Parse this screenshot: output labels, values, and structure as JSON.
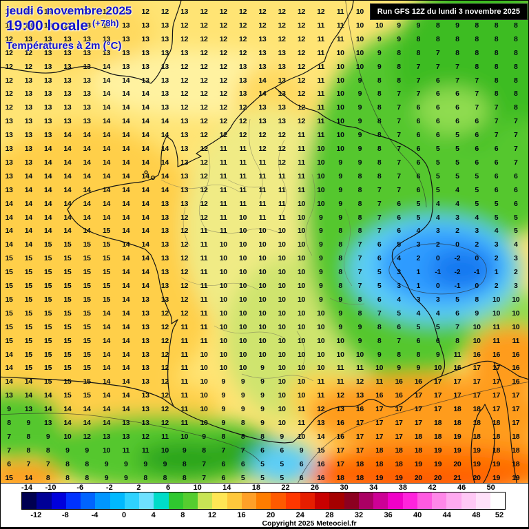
{
  "header": {
    "date_line": "jeudi 6 novembre 2025",
    "time_line": "19:00 locale",
    "time_offset": "(+78h)",
    "variable_line": "Températures à 2m (°C)"
  },
  "run_info": {
    "text": "Run GFS 12Z du lundi 3 novembre 2025"
  },
  "footer": {
    "copyright": "Copyright 2025 Meteociel.fr"
  },
  "palette": {
    "base_yellow": "#ffe474",
    "pale_yellow": "#fff2a0",
    "gold": "#ffcf4a",
    "gold2": "#ffd95e",
    "cream": "#f0eb85",
    "pale_green": "#cfe46e",
    "green": "#54c72e",
    "bright_green": "#3dbc22",
    "light_green": "#8fdc50",
    "dark_green": "#2aa51c",
    "cyan": "#5bcdf8",
    "blue": "#2f9bff",
    "deep_blue": "#1478f0",
    "orange": "#ff9c1e",
    "deep_orange": "#ff7000",
    "red_orange": "#ff4d00",
    "header_blue": "#1212cc",
    "value_text": "#000a14"
  },
  "scale": {
    "labels_top": [
      "-14",
      "-10",
      "-6",
      "-2",
      "2",
      "6",
      "10",
      "14",
      "18",
      "22",
      "26",
      "30",
      "34",
      "38",
      "42",
      "46",
      "50"
    ],
    "labels_bottom": [
      "-12",
      "-8",
      "-4",
      "0",
      "4",
      "8",
      "12",
      "16",
      "20",
      "24",
      "28",
      "32",
      "36",
      "40",
      "44",
      "48",
      "52"
    ],
    "colors": [
      "#000050",
      "#000096",
      "#0000dc",
      "#0032ff",
      "#0064ff",
      "#0096ff",
      "#00b9ff",
      "#2fd2ff",
      "#6ee1ff",
      "#00dcc8",
      "#2fc82f",
      "#55cd2f",
      "#c8e455",
      "#ffe655",
      "#ffc83c",
      "#ffa028",
      "#ff7d00",
      "#ff5a00",
      "#ff3700",
      "#e61e00",
      "#c80000",
      "#a50000",
      "#8c0020",
      "#aa0064",
      "#cd0096",
      "#f000c8",
      "#ff23dc",
      "#ff5ae1",
      "#ff87e8",
      "#ffaaf0",
      "#ffc8f5",
      "#ffe1fa",
      "#ffffff"
    ]
  },
  "grid": {
    "rows": 35,
    "cols": 27,
    "values": [
      [
        13,
        13,
        13,
        13,
        13,
        13,
        13,
        12,
        12,
        13,
        12,
        12,
        12,
        12,
        12,
        12,
        12,
        11,
        10,
        10,
        10,
        9,
        9,
        8,
        9,
        8,
        9
      ],
      [
        13,
        13,
        13,
        13,
        13,
        13,
        13,
        13,
        13,
        12,
        12,
        12,
        12,
        12,
        12,
        12,
        11,
        11,
        10,
        10,
        9,
        9,
        8,
        9,
        8,
        8,
        8
      ],
      [
        12,
        13,
        13,
        13,
        13,
        13,
        13,
        13,
        13,
        12,
        12,
        12,
        12,
        13,
        12,
        12,
        11,
        11,
        10,
        9,
        9,
        8,
        8,
        8,
        8,
        8,
        8
      ],
      [
        12,
        12,
        13,
        13,
        13,
        13,
        13,
        13,
        13,
        13,
        12,
        12,
        12,
        13,
        13,
        12,
        11,
        10,
        10,
        9,
        8,
        8,
        7,
        8,
        8,
        8,
        8
      ],
      [
        12,
        12,
        13,
        13,
        13,
        14,
        13,
        13,
        13,
        12,
        12,
        12,
        13,
        13,
        13,
        12,
        11,
        10,
        10,
        9,
        8,
        7,
        7,
        7,
        8,
        8,
        8
      ],
      [
        12,
        13,
        13,
        13,
        13,
        14,
        14,
        13,
        13,
        12,
        12,
        12,
        13,
        14,
        13,
        12,
        11,
        10,
        9,
        8,
        8,
        7,
        6,
        7,
        7,
        8,
        8
      ],
      [
        12,
        13,
        13,
        13,
        13,
        14,
        14,
        14,
        13,
        12,
        12,
        12,
        13,
        14,
        13,
        12,
        11,
        10,
        9,
        8,
        7,
        7,
        6,
        6,
        7,
        8,
        8
      ],
      [
        12,
        13,
        13,
        13,
        13,
        14,
        14,
        14,
        13,
        12,
        12,
        12,
        12,
        13,
        13,
        12,
        11,
        10,
        9,
        8,
        7,
        6,
        6,
        6,
        7,
        7,
        8
      ],
      [
        13,
        13,
        13,
        13,
        13,
        14,
        14,
        14,
        14,
        13,
        12,
        12,
        12,
        13,
        13,
        12,
        11,
        10,
        9,
        8,
        7,
        6,
        6,
        6,
        6,
        7,
        7
      ],
      [
        13,
        13,
        13,
        14,
        14,
        14,
        14,
        14,
        14,
        13,
        12,
        12,
        12,
        12,
        12,
        11,
        11,
        10,
        9,
        8,
        7,
        6,
        6,
        5,
        6,
        7,
        7
      ],
      [
        13,
        13,
        14,
        14,
        14,
        14,
        14,
        14,
        14,
        13,
        12,
        11,
        11,
        12,
        12,
        11,
        10,
        10,
        9,
        8,
        7,
        6,
        5,
        5,
        6,
        6,
        7
      ],
      [
        13,
        13,
        14,
        14,
        14,
        14,
        14,
        14,
        14,
        13,
        12,
        11,
        11,
        11,
        12,
        11,
        10,
        9,
        9,
        8,
        7,
        6,
        5,
        5,
        6,
        6,
        7
      ],
      [
        13,
        14,
        14,
        14,
        14,
        14,
        14,
        14,
        14,
        13,
        12,
        11,
        11,
        11,
        11,
        11,
        10,
        9,
        8,
        8,
        7,
        6,
        5,
        5,
        5,
        6,
        6
      ],
      [
        13,
        14,
        14,
        14,
        14,
        14,
        14,
        14,
        14,
        13,
        12,
        11,
        11,
        11,
        11,
        11,
        10,
        9,
        8,
        7,
        7,
        6,
        5,
        4,
        5,
        6,
        6
      ],
      [
        14,
        14,
        14,
        14,
        14,
        14,
        14,
        14,
        13,
        13,
        12,
        11,
        11,
        11,
        11,
        10,
        10,
        9,
        8,
        7,
        6,
        5,
        4,
        4,
        5,
        5,
        6
      ],
      [
        14,
        14,
        14,
        14,
        14,
        14,
        14,
        14,
        13,
        12,
        12,
        11,
        10,
        11,
        11,
        10,
        9,
        9,
        8,
        7,
        6,
        5,
        4,
        3,
        4,
        5,
        5
      ],
      [
        14,
        14,
        14,
        14,
        14,
        15,
        14,
        14,
        13,
        12,
        11,
        11,
        10,
        10,
        10,
        10,
        9,
        8,
        8,
        7,
        6,
        4,
        3,
        2,
        3,
        4,
        5
      ],
      [
        14,
        14,
        15,
        15,
        15,
        15,
        14,
        14,
        13,
        12,
        11,
        10,
        10,
        10,
        10,
        10,
        9,
        8,
        7,
        6,
        5,
        3,
        2,
        0,
        2,
        3,
        4
      ],
      [
        15,
        15,
        15,
        15,
        15,
        15,
        14,
        14,
        13,
        12,
        11,
        10,
        10,
        10,
        10,
        10,
        9,
        8,
        7,
        6,
        4,
        2,
        0,
        -2,
        0,
        2,
        3
      ],
      [
        15,
        15,
        15,
        15,
        15,
        15,
        14,
        14,
        13,
        12,
        11,
        10,
        10,
        10,
        10,
        10,
        9,
        8,
        7,
        5,
        3,
        1,
        -1,
        -2,
        -1,
        1,
        2
      ],
      [
        15,
        15,
        15,
        15,
        15,
        15,
        14,
        14,
        13,
        12,
        11,
        10,
        10,
        10,
        10,
        10,
        9,
        8,
        7,
        5,
        3,
        1,
        0,
        -1,
        0,
        2,
        3
      ],
      [
        15,
        15,
        15,
        15,
        15,
        15,
        14,
        13,
        13,
        12,
        11,
        10,
        10,
        10,
        10,
        10,
        9,
        9,
        8,
        6,
        4,
        3,
        3,
        5,
        8,
        10,
        10
      ],
      [
        15,
        15,
        15,
        15,
        15,
        14,
        14,
        13,
        12,
        12,
        11,
        10,
        10,
        10,
        10,
        10,
        10,
        9,
        8,
        7,
        5,
        4,
        4,
        6,
        9,
        10,
        10
      ],
      [
        15,
        15,
        15,
        15,
        15,
        14,
        14,
        13,
        12,
        11,
        11,
        10,
        10,
        10,
        10,
        10,
        10,
        9,
        9,
        8,
        6,
        5,
        5,
        7,
        10,
        11,
        10
      ],
      [
        15,
        15,
        15,
        15,
        15,
        14,
        14,
        13,
        12,
        11,
        11,
        10,
        10,
        10,
        10,
        10,
        10,
        10,
        9,
        8,
        7,
        6,
        6,
        8,
        10,
        11,
        11
      ],
      [
        14,
        15,
        15,
        15,
        15,
        14,
        14,
        13,
        12,
        11,
        10,
        10,
        10,
        10,
        10,
        10,
        10,
        10,
        10,
        9,
        8,
        8,
        9,
        11,
        16,
        16,
        16
      ],
      [
        14,
        15,
        15,
        15,
        15,
        14,
        14,
        13,
        12,
        11,
        10,
        10,
        10,
        9,
        10,
        10,
        10,
        11,
        11,
        10,
        9,
        9,
        10,
        16,
        17,
        17,
        16
      ],
      [
        14,
        14,
        15,
        15,
        15,
        14,
        14,
        13,
        12,
        11,
        10,
        9,
        9,
        9,
        10,
        10,
        11,
        11,
        12,
        11,
        16,
        16,
        17,
        17,
        17,
        17,
        16
      ],
      [
        13,
        14,
        14,
        15,
        15,
        14,
        14,
        13,
        12,
        11,
        10,
        9,
        9,
        9,
        10,
        10,
        11,
        12,
        13,
        16,
        16,
        17,
        17,
        17,
        17,
        17,
        17
      ],
      [
        9,
        13,
        14,
        14,
        14,
        14,
        14,
        13,
        12,
        11,
        10,
        9,
        9,
        9,
        10,
        11,
        12,
        13,
        16,
        17,
        17,
        17,
        17,
        18,
        18,
        17,
        17
      ],
      [
        8,
        9,
        13,
        14,
        14,
        14,
        13,
        13,
        12,
        11,
        10,
        9,
        8,
        9,
        10,
        11,
        13,
        16,
        17,
        17,
        17,
        17,
        18,
        18,
        18,
        18,
        17
      ],
      [
        7,
        8,
        9,
        10,
        12,
        13,
        13,
        12,
        11,
        10,
        9,
        8,
        8,
        8,
        9,
        10,
        14,
        16,
        17,
        17,
        17,
        18,
        18,
        19,
        18,
        18,
        18
      ],
      [
        7,
        8,
        8,
        9,
        9,
        10,
        11,
        11,
        10,
        9,
        8,
        7,
        7,
        6,
        6,
        9,
        15,
        17,
        17,
        18,
        18,
        18,
        19,
        19,
        19,
        18,
        18
      ],
      [
        6,
        7,
        7,
        8,
        8,
        9,
        9,
        9,
        9,
        8,
        7,
        6,
        6,
        5,
        5,
        6,
        16,
        17,
        18,
        18,
        18,
        19,
        19,
        20,
        19,
        19,
        18
      ],
      [
        15,
        14,
        8,
        8,
        8,
        9,
        9,
        8,
        8,
        8,
        7,
        6,
        5,
        5,
        5,
        6,
        16,
        18,
        18,
        19,
        19,
        20,
        20,
        21,
        20,
        19,
        19
      ]
    ]
  }
}
